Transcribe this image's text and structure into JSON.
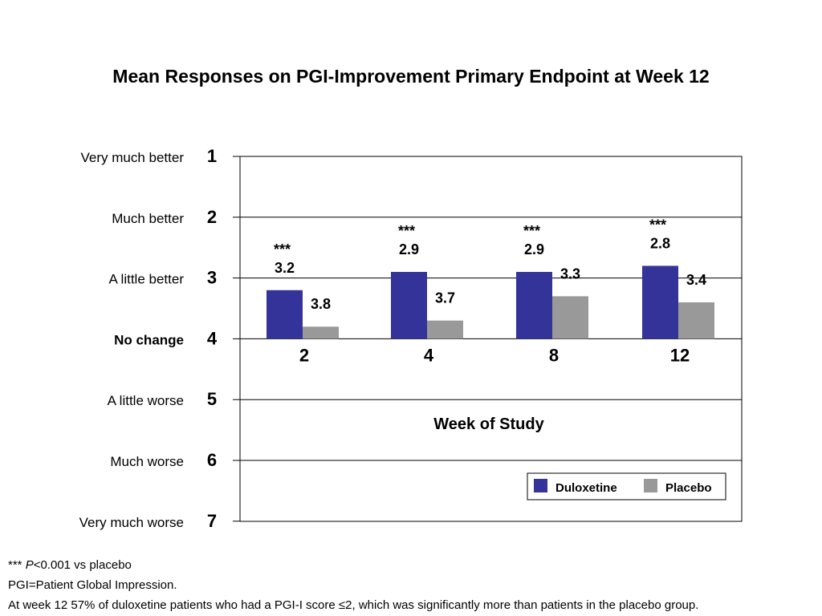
{
  "chart_data": {
    "type": "bar",
    "title": "Mean Responses on PGI-Improvement Primary Endpoint at Week 12",
    "xlabel": "Week of Study",
    "ylabel": "",
    "categories": [
      "2",
      "4",
      "8",
      "12"
    ],
    "series": [
      {
        "name": "Duloxetine",
        "color": "#333399",
        "values": [
          3.2,
          2.9,
          2.9,
          2.8
        ],
        "value_labels": [
          "3.2",
          "2.9",
          "2.9",
          "2.8"
        ]
      },
      {
        "name": "Placebo",
        "color": "#999999",
        "values": [
          3.8,
          3.7,
          3.3,
          3.4
        ],
        "value_labels": [
          "3.8",
          "3.7",
          "3.3",
          "3.4"
        ]
      }
    ],
    "bar_baseline": 4,
    "ylim": [
      1,
      7
    ],
    "y_inverted": true,
    "yticks": [
      1,
      2,
      3,
      4,
      5,
      6,
      7
    ],
    "ytick_labels": [
      "1",
      "2",
      "3",
      "4",
      "5",
      "6",
      "7"
    ],
    "y_category_labels": [
      "Very much better",
      "Much better",
      "A little better",
      "No change",
      "A little worse",
      "Much worse",
      "Very much worse"
    ],
    "y_category_bold": [
      false,
      false,
      false,
      true,
      false,
      false,
      false
    ],
    "significance_marker": "***",
    "significant": [
      true,
      true,
      true,
      true
    ],
    "grid": true,
    "legend_position": "bottom-right"
  },
  "footnotes": {
    "sig_stars": "***",
    "sig_p": "P",
    "sig_rest": "<0.001 vs placebo",
    "pgi": "PGI=Patient Global Impression.",
    "week12": "At week 12 57% of duloxetine patients who had a PGI-I score ≤2, which was significantly more than patients in the placebo group."
  }
}
